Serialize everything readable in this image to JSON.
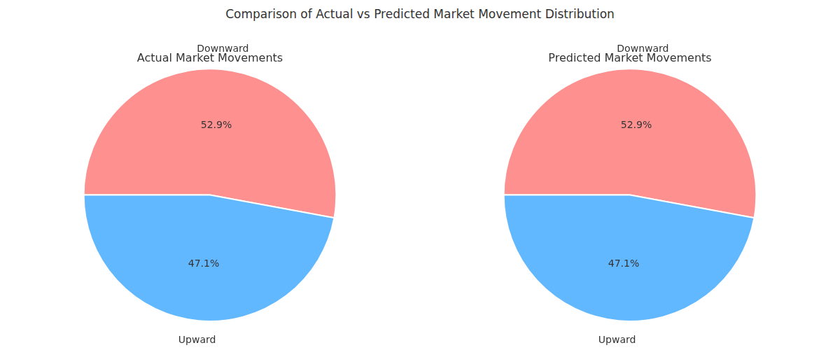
{
  "title": "Comparison of Actual vs Predicted Market Movement Distribution",
  "chart_data": [
    {
      "type": "pie",
      "title": "Actual Market Movements",
      "categories": [
        "Downward",
        "Upward"
      ],
      "values": [
        52.9,
        47.1
      ],
      "value_labels": [
        "52.9%",
        "47.1%"
      ],
      "colors": [
        "#FF9090",
        "#62B8FF"
      ],
      "data_labels": true
    },
    {
      "type": "pie",
      "title": "Predicted Market Movements",
      "categories": [
        "Downward",
        "Upward"
      ],
      "values": [
        52.9,
        47.1
      ],
      "value_labels": [
        "52.9%",
        "47.1%"
      ],
      "colors": [
        "#FF9090",
        "#62B8FF"
      ],
      "data_labels": true
    }
  ]
}
